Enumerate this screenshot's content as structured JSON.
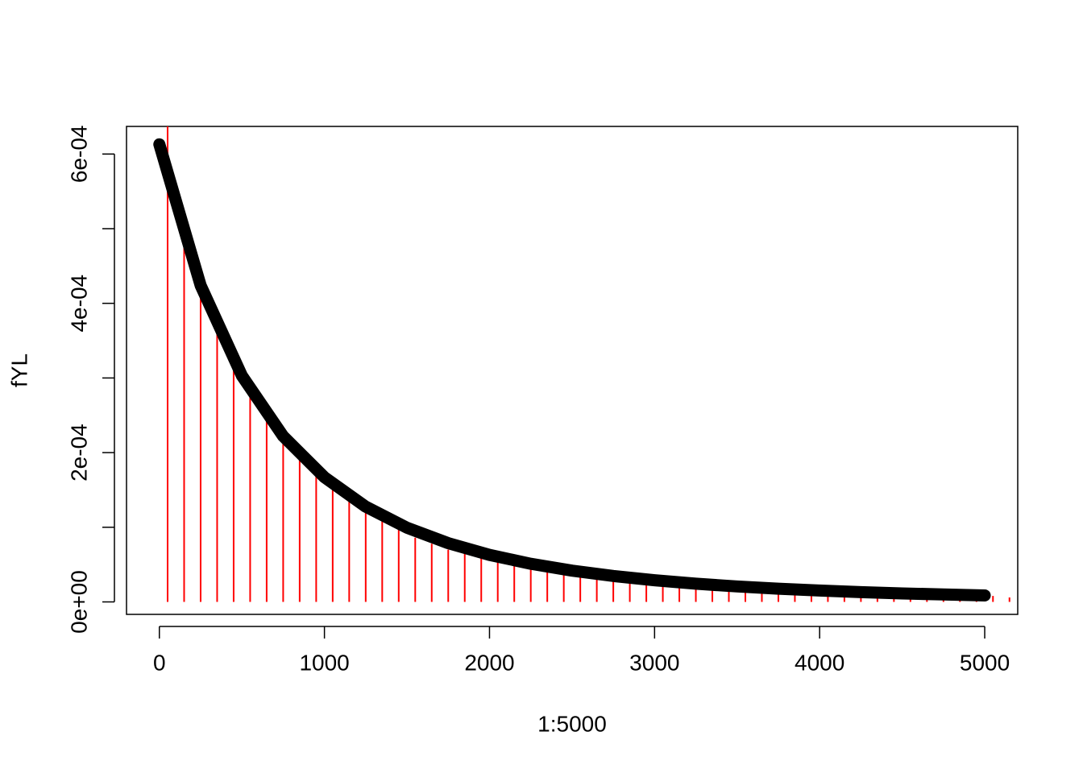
{
  "chart_data": {
    "type": "line",
    "xlabel": "1:5000",
    "ylabel": "fYL",
    "xlim": [
      -199,
      5200
    ],
    "ylim": [
      -1.67e-05,
      0.000637
    ],
    "xticks": [
      0,
      1000,
      2000,
      3000,
      4000,
      5000
    ],
    "yticks": [
      {
        "value": 0,
        "label": "0e+00"
      },
      {
        "value": 0.0001,
        "label": null
      },
      {
        "value": 0.0002,
        "label": "2e-04"
      },
      {
        "value": 0.0003,
        "label": null
      },
      {
        "value": 0.0004,
        "label": "4e-04"
      },
      {
        "value": 0.0005,
        "label": null
      },
      {
        "value": 0.0006,
        "label": "6e-04"
      }
    ],
    "series": [
      {
        "style": "points",
        "color": "#000000",
        "x": [
          0,
          250,
          500,
          750,
          1000,
          1250,
          1500,
          1750,
          2000,
          2250,
          2500,
          2750,
          3000,
          3250,
          3500,
          3750,
          4000,
          4250,
          4500,
          4750,
          5000
        ],
        "values": [
          0.000613,
          0.000424,
          0.000303,
          0.000222,
          0.000167,
          0.0001276,
          9.94e-05,
          7.87e-05,
          6.3e-05,
          5.11e-05,
          4.19e-05,
          3.47e-05,
          2.9e-05,
          2.44e-05,
          2.07e-05,
          1.77e-05,
          1.52e-05,
          1.31e-05,
          1.14e-05,
          9.95e-06,
          8.7e-06
        ]
      },
      {
        "style": "h",
        "color": "#ff0000",
        "x": [
          50,
          150,
          250,
          350,
          450,
          550,
          650,
          750,
          850,
          950,
          1050,
          1150,
          1250,
          1350,
          1450,
          1550,
          1650,
          1750,
          1850,
          1950,
          2050,
          2150,
          2250,
          2350,
          2450,
          2550,
          2650,
          2750,
          2850,
          2950,
          3050,
          3150,
          3250,
          3350,
          3450,
          3550,
          3650,
          3750,
          3850,
          3950,
          4050,
          4150,
          4250,
          4350,
          4450,
          4550,
          4650,
          4750,
          4850,
          4950,
          5050,
          5150
        ],
        "values": [
          0.00066,
          0.000487,
          0.000413,
          0.000365,
          0.000314,
          0.000284,
          0.000254,
          0.000214,
          0.00019,
          0.00017,
          0.00016,
          0.000141,
          0.000122,
          0.000111,
          9.8e-05,
          8.6e-05,
          7.8e-05,
          7e-05,
          6.7e-05,
          5.9e-05,
          5.6e-05,
          5.2e-05,
          4.6e-05,
          4.6e-05,
          4.1e-05,
          3.7e-05,
          3.2e-05,
          2.8e-05,
          2.9e-05,
          2.6e-05,
          2.5e-05,
          2.5e-05,
          2.3e-05,
          2.2e-05,
          2.1e-05,
          1.8e-05,
          1.6e-05,
          1.6e-05,
          1.4e-05,
          1.5e-05,
          1.4e-05,
          1.3e-05,
          1.2e-05,
          1.1e-05,
          1.1e-05,
          1e-05,
          9e-06,
          9e-06,
          8e-06,
          9e-06,
          8e-06,
          6e-06
        ]
      }
    ]
  }
}
